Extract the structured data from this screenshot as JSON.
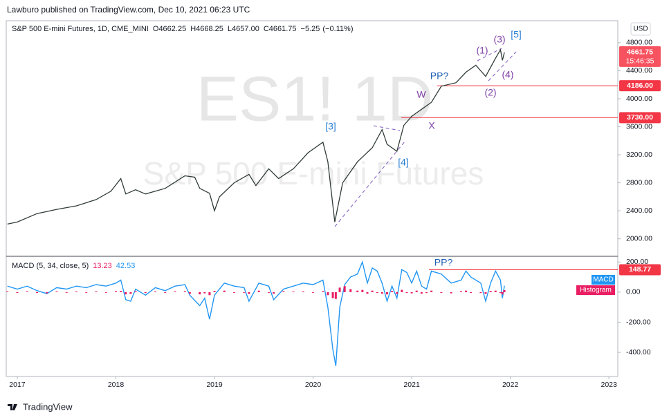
{
  "header": {
    "publisher": "Lawburo published on TradingView.com, Dec 10, 2021 06:23 UTC"
  },
  "footer": {
    "brand": "TradingView"
  },
  "chart_data": [
    {
      "type": "line",
      "title": "S&P 500 E-mini Futures, 1D, CME_MINI",
      "ohlc": {
        "labels": [
          "O",
          "H",
          "L",
          "C"
        ],
        "values": [
          4662.25,
          4668.25,
          4657,
          4661.75
        ],
        "value_labels": [
          "4662.25",
          "4668.25",
          "4657.00",
          "4661.75"
        ]
      },
      "change": {
        "value": -5.25,
        "label": "−5.25",
        "percent": -0.11,
        "percent_label": "(−0.11%)"
      },
      "watermark": {
        "symbol": "ES1! 1D",
        "name": "S&P 500 E-mini Futures"
      },
      "currency": "USD",
      "x": [
        2016.9,
        2017.0,
        2017.2,
        2017.4,
        2017.6,
        2017.8,
        2017.95,
        2018.05,
        2018.1,
        2018.2,
        2018.3,
        2018.5,
        2018.7,
        2018.8,
        2018.85,
        2018.95,
        2019.0,
        2019.05,
        2019.2,
        2019.35,
        2019.42,
        2019.55,
        2019.65,
        2019.8,
        2019.95,
        2020.1,
        2020.15,
        2020.22,
        2020.3,
        2020.45,
        2020.6,
        2020.7,
        2020.75,
        2020.85,
        2020.92,
        2021.0,
        2021.1,
        2021.2,
        2021.3,
        2021.45,
        2021.55,
        2021.65,
        2021.7,
        2021.75,
        2021.85,
        2021.9,
        2021.92,
        2021.94
      ],
      "series": [
        {
          "name": "S&P 500 E-mini Futures",
          "color": "#2f3b35",
          "values": [
            2210,
            2240,
            2360,
            2420,
            2470,
            2560,
            2680,
            2860,
            2640,
            2700,
            2640,
            2720,
            2900,
            2880,
            2720,
            2650,
            2400,
            2600,
            2800,
            2920,
            2760,
            3000,
            2860,
            3000,
            3230,
            3380,
            3100,
            2240,
            2800,
            3100,
            3300,
            3560,
            3350,
            3250,
            3620,
            3750,
            3850,
            3950,
            4180,
            4230,
            4380,
            4480,
            4400,
            4320,
            4580,
            4700,
            4550,
            4661.75
          ]
        }
      ],
      "xlim": [
        2016.895,
        2023.09
      ],
      "ylim": [
        1760,
        5115
      ],
      "yticks": [
        {
          "value": 4800,
          "label": "4800.00"
        },
        {
          "value": 4400,
          "label": "4400.00"
        },
        {
          "value": 4000,
          "label": "4000.00"
        },
        {
          "value": 3600,
          "label": "3600.00"
        },
        {
          "value": 3200,
          "label": "3200.00"
        },
        {
          "value": 2800,
          "label": "2800.00"
        },
        {
          "value": 2400,
          "label": "2400.00"
        },
        {
          "value": 2000,
          "label": "2000.00"
        }
      ],
      "last_price": {
        "value": 4661.75,
        "label": "4661.75",
        "countdown": "15:46:35"
      },
      "hlines": [
        {
          "value": 4186,
          "label": "4186.00",
          "color": "#f23645"
        },
        {
          "value": 3730,
          "label": "3730.00",
          "color": "#f23645"
        }
      ],
      "annotations": [
        "[3]",
        "[4]",
        "[5]",
        "(1)",
        "(2)",
        "(3)",
        "(4)",
        "W",
        "X",
        "PP?"
      ],
      "grid": false
    },
    {
      "type": "line",
      "title": "MACD (5, 34, close, 5)",
      "x": [
        2016.9,
        2017.0,
        2017.1,
        2017.2,
        2017.3,
        2017.4,
        2017.5,
        2017.6,
        2017.7,
        2017.8,
        2017.9,
        2018.0,
        2018.05,
        2018.1,
        2018.15,
        2018.2,
        2018.3,
        2018.4,
        2018.5,
        2018.6,
        2018.7,
        2018.75,
        2018.85,
        2018.9,
        2018.95,
        2019.0,
        2019.1,
        2019.2,
        2019.3,
        2019.35,
        2019.45,
        2019.55,
        2019.6,
        2019.7,
        2019.8,
        2019.9,
        2020.0,
        2020.1,
        2020.15,
        2020.2,
        2020.23,
        2020.27,
        2020.32,
        2020.38,
        2020.45,
        2020.5,
        2020.55,
        2020.6,
        2020.65,
        2020.7,
        2020.75,
        2020.8,
        2020.85,
        2020.9,
        2020.95,
        2021.0,
        2021.05,
        2021.1,
        2021.15,
        2021.2,
        2021.3,
        2021.4,
        2021.5,
        2021.55,
        2021.6,
        2021.7,
        2021.75,
        2021.8,
        2021.85,
        2021.9,
        2021.92,
        2021.94
      ],
      "series": [
        {
          "name": "MACD",
          "color": "#2196f3",
          "values": [
            40,
            20,
            40,
            10,
            -10,
            30,
            20,
            40,
            30,
            50,
            40,
            60,
            80,
            -50,
            -60,
            20,
            -20,
            30,
            10,
            40,
            50,
            -20,
            -90,
            -40,
            -180,
            -20,
            60,
            40,
            30,
            -60,
            60,
            40,
            -50,
            20,
            40,
            60,
            50,
            80,
            -100,
            -380,
            -490,
            -100,
            50,
            100,
            120,
            200,
            60,
            160,
            140,
            60,
            -60,
            40,
            -40,
            150,
            130,
            60,
            140,
            40,
            20,
            140,
            120,
            60,
            80,
            140,
            100,
            60,
            -60,
            60,
            140,
            80,
            -40,
            42.53
          ]
        },
        {
          "name": "Histogram",
          "color": "#e91e63",
          "values": [
            5,
            -5,
            5,
            -5,
            -8,
            5,
            -3,
            4,
            -3,
            5,
            -2,
            6,
            8,
            -15,
            -12,
            6,
            -6,
            4,
            -3,
            5,
            6,
            -10,
            -15,
            -8,
            -20,
            8,
            10,
            -4,
            -3,
            -12,
            10,
            -4,
            -10,
            6,
            4,
            5,
            -3,
            6,
            -20,
            -40,
            -45,
            30,
            40,
            20,
            10,
            15,
            -10,
            10,
            -5,
            -10,
            -15,
            8,
            -12,
            15,
            -5,
            -8,
            10,
            -10,
            -6,
            10,
            -5,
            -8,
            6,
            10,
            -5,
            -6,
            -12,
            8,
            10,
            -6,
            -15,
            13.23
          ]
        }
      ],
      "xlim": [
        2016.895,
        2023.09
      ],
      "xticks": [
        2017,
        2018,
        2019,
        2020,
        2021,
        2022,
        2023
      ],
      "ylim": [
        -560,
        238
      ],
      "yticks": [
        {
          "value": 200,
          "label": "200.00"
        },
        {
          "value": 0,
          "label": "0.00"
        },
        {
          "value": -200,
          "label": "-200.00"
        },
        {
          "value": -400,
          "label": "-400.00"
        }
      ],
      "hlines": [
        {
          "value": 148.77,
          "label": "148.77",
          "color": "#f23645"
        }
      ],
      "annotations": [
        "PP?"
      ],
      "grid": false
    }
  ]
}
